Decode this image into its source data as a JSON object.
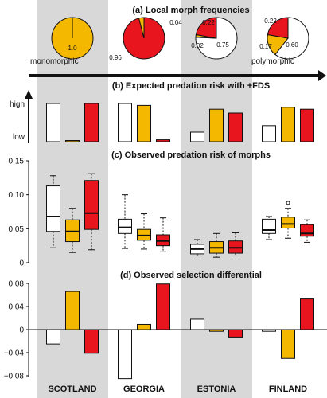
{
  "colors": {
    "panel_bg": "#d8d8d8",
    "white": "#ffffff",
    "yellow": "#f5b800",
    "red": "#e8141e",
    "black": "#111111"
  },
  "countries": [
    "SCOTLAND",
    "GEORGIA",
    "ESTONIA",
    "FINLAND"
  ],
  "morphs": [
    "white",
    "yellow",
    "red"
  ],
  "chart_data": [
    {
      "id": "a",
      "type": "pie",
      "title": "(a)  Local morph frequencies",
      "gradient_left_label": "monomorphic",
      "gradient_right_label": "polymorphic",
      "pies": [
        {
          "country": "SCOTLAND",
          "slices": [
            {
              "morph": "yellow",
              "value": 1.0
            }
          ],
          "labels": [
            "1.0"
          ]
        },
        {
          "country": "GEORGIA",
          "slices": [
            {
              "morph": "red",
              "value": 0.96
            },
            {
              "morph": "yellow",
              "value": 0.04
            }
          ],
          "labels": [
            "0.96",
            "0.04"
          ]
        },
        {
          "country": "ESTONIA",
          "slices": [
            {
              "morph": "white",
              "value": 0.75
            },
            {
              "morph": "yellow",
              "value": 0.02
            },
            {
              "morph": "red",
              "value": 0.22
            }
          ],
          "labels": [
            "0.75",
            "0.02",
            "0.22"
          ]
        },
        {
          "country": "FINLAND",
          "slices": [
            {
              "morph": "white",
              "value": 0.6
            },
            {
              "morph": "yellow",
              "value": 0.17
            },
            {
              "morph": "red",
              "value": 0.22
            }
          ],
          "labels": [
            "0.60",
            "0.17",
            "0.22"
          ]
        }
      ]
    },
    {
      "id": "b",
      "type": "bar",
      "title": "(b)  Expected predation risk with +FDS",
      "ylabel": "",
      "y_tick_labels": [
        "high",
        "low"
      ],
      "ylim": [
        0,
        1
      ],
      "series": [
        {
          "name": "white",
          "values": [
            1.0,
            1.0,
            0.25,
            0.42
          ]
        },
        {
          "name": "yellow",
          "values": [
            0.03,
            0.95,
            0.85,
            0.9
          ]
        },
        {
          "name": "red",
          "values": [
            1.0,
            0.05,
            0.75,
            0.85
          ]
        }
      ]
    },
    {
      "id": "c",
      "type": "box",
      "title": "(c)  Observed predation risk of morphs",
      "ylim": [
        0,
        0.15
      ],
      "yticks": [
        0,
        0.05,
        0.1,
        0.15
      ],
      "ytick_labels": [
        "0",
        "0.05",
        "0.10",
        "0.15"
      ],
      "boxes": [
        [
          {
            "morph": "white",
            "min": 0.022,
            "q1": 0.046,
            "median": 0.068,
            "q3": 0.113,
            "max": 0.128
          },
          {
            "morph": "yellow",
            "min": 0.015,
            "q1": 0.031,
            "median": 0.046,
            "q3": 0.063,
            "max": 0.08
          },
          {
            "morph": "red",
            "min": 0.019,
            "q1": 0.049,
            "median": 0.073,
            "q3": 0.121,
            "max": 0.131
          }
        ],
        [
          {
            "morph": "white",
            "min": 0.021,
            "q1": 0.043,
            "median": 0.052,
            "q3": 0.064,
            "max": 0.1
          },
          {
            "morph": "yellow",
            "min": 0.02,
            "q1": 0.033,
            "median": 0.04,
            "q3": 0.049,
            "max": 0.072
          },
          {
            "morph": "red",
            "min": 0.016,
            "q1": 0.025,
            "median": 0.032,
            "q3": 0.041,
            "max": 0.066
          }
        ],
        [
          {
            "morph": "white",
            "min": 0.01,
            "q1": 0.013,
            "median": 0.02,
            "q3": 0.027,
            "max": 0.034
          },
          {
            "morph": "yellow",
            "min": 0.008,
            "q1": 0.014,
            "median": 0.022,
            "q3": 0.031,
            "max": 0.043
          },
          {
            "morph": "red",
            "min": 0.01,
            "q1": 0.014,
            "median": 0.022,
            "q3": 0.032,
            "max": 0.044
          }
        ],
        [
          {
            "morph": "white",
            "min": 0.034,
            "q1": 0.043,
            "median": 0.048,
            "q3": 0.064,
            "max": 0.068
          },
          {
            "morph": "yellow",
            "min": 0.036,
            "q1": 0.051,
            "median": 0.057,
            "q3": 0.067,
            "max": 0.08,
            "outlier": 0.088
          },
          {
            "morph": "red",
            "min": 0.03,
            "q1": 0.039,
            "median": 0.043,
            "q3": 0.056,
            "max": 0.063
          }
        ]
      ]
    },
    {
      "id": "d",
      "type": "bar",
      "title": "(d)  Observed selection differential",
      "ylim": [
        -0.08,
        0.08
      ],
      "yticks": [
        -0.08,
        -0.04,
        0,
        0.04,
        0.08
      ],
      "ytick_labels": [
        "−0.08",
        "−0.04",
        "0",
        "0.04",
        "0.08"
      ],
      "series": [
        {
          "name": "white",
          "values": [
            -0.025,
            -0.085,
            0.018,
            -0.003
          ]
        },
        {
          "name": "yellow",
          "values": [
            0.066,
            0.009,
            -0.003,
            -0.05
          ]
        },
        {
          "name": "red",
          "values": [
            -0.041,
            0.079,
            -0.013,
            0.053
          ]
        }
      ]
    }
  ]
}
